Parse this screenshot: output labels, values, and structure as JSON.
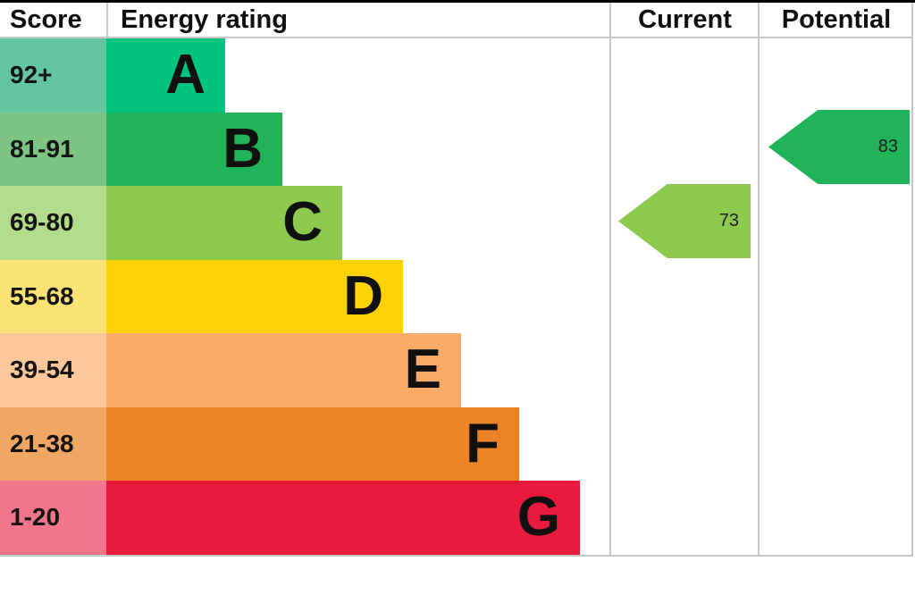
{
  "header": {
    "score": "Score",
    "energy_rating": "Energy rating",
    "current": "Current",
    "potential": "Potential"
  },
  "bands": [
    {
      "grade": "A",
      "score_range": "92+",
      "score_bg": "#63c6a0",
      "bar_color": "#00c47e"
    },
    {
      "grade": "B",
      "score_range": "81-91",
      "score_bg": "#7cc482",
      "bar_color": "#21b357"
    },
    {
      "grade": "C",
      "score_range": "69-80",
      "score_bg": "#b3db8c",
      "bar_color": "#8cc94c"
    },
    {
      "grade": "D",
      "score_range": "55-68",
      "score_bg": "#fbe275",
      "bar_color": "#fbd205"
    },
    {
      "grade": "E",
      "score_range": "39-54",
      "score_bg": "#fbc89c",
      "bar_color": "#fbaa68"
    },
    {
      "grade": "F",
      "score_range": "21-38",
      "score_bg": "#f0a763",
      "bar_color": "#ec8427"
    },
    {
      "grade": "G",
      "score_range": "1-20",
      "score_bg": "#f2768b",
      "bar_color": "#e91a3c"
    }
  ],
  "current": {
    "value": "73",
    "band": "C",
    "color": "#8cc94c"
  },
  "potential": {
    "value": "83",
    "band": "B",
    "color": "#21b357"
  },
  "grid_color": "#c7c7c7",
  "top_border_color": "#000000",
  "chart_data": {
    "type": "bar",
    "title": "Energy rating",
    "categories": [
      "A",
      "B",
      "C",
      "D",
      "E",
      "F",
      "G"
    ],
    "score_ranges": [
      "92+",
      "81-91",
      "69-80",
      "55-68",
      "39-54",
      "21-38",
      "1-20"
    ],
    "bar_colors": [
      "#00c47e",
      "#21b357",
      "#8cc94c",
      "#fbd205",
      "#fbaa68",
      "#ec8427",
      "#e91a3c"
    ],
    "values_relative_width": [
      133,
      197,
      264,
      332,
      397,
      462,
      530
    ],
    "current_score": 73,
    "current_band": "C",
    "potential_score": 83,
    "potential_band": "B",
    "legend_position": "none",
    "grid": false
  }
}
